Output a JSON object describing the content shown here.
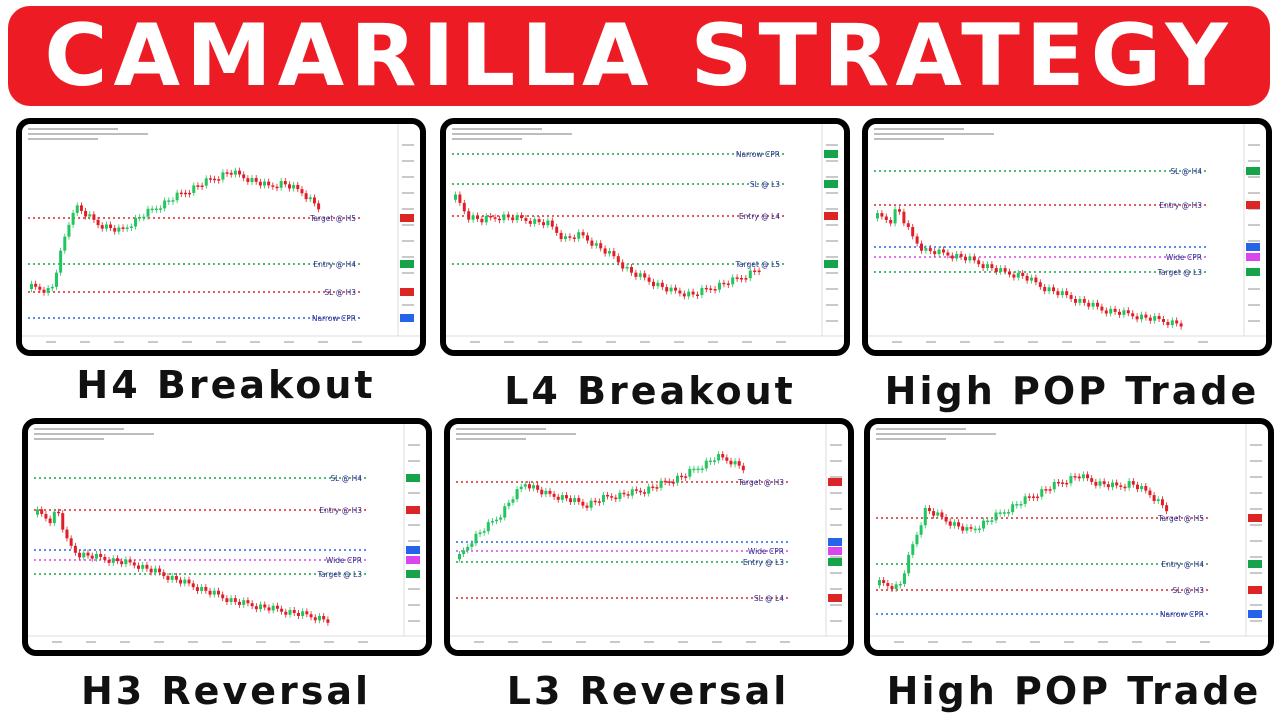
{
  "banner": {
    "title": "CAMARILLA STRATEGY",
    "color": "#ed1c24"
  },
  "colors": {
    "up": "#22c55e",
    "down": "#e11d26",
    "green_level": "#16a34a",
    "red_level": "#dc2626",
    "blue_level": "#2563eb",
    "pink_level": "#d946ef",
    "label": "#2b2b8c"
  },
  "panels": [
    {
      "caption": "H4 Breakout",
      "levels": [
        {
          "label": "Target @ H5"
        },
        {
          "label": "Entry @ H4"
        },
        {
          "label": "SL @ H3"
        },
        {
          "label": "Narrow CPR"
        }
      ]
    },
    {
      "caption": "L4 Breakout",
      "levels": [
        {
          "label": "Narrow CPR"
        },
        {
          "label": "SL @ L3"
        },
        {
          "label": "Entry @ L4"
        },
        {
          "label": "Target @ L5"
        }
      ]
    },
    {
      "caption": "High POP Trade",
      "levels": [
        {
          "label": "SL @ H4"
        },
        {
          "label": "Entry @ H3"
        },
        {
          "label": "Wide CPR"
        },
        {
          "label": "Target @ L3"
        }
      ]
    },
    {
      "caption": "H3 Reversal",
      "levels": [
        {
          "label": "SL @ H4"
        },
        {
          "label": "Entry @ H3"
        },
        {
          "label": "Wide CPR"
        },
        {
          "label": "Target @ L3"
        }
      ]
    },
    {
      "caption": "L3 Reversal",
      "levels": [
        {
          "label": "Target @ H3"
        },
        {
          "label": "Wide CPR"
        },
        {
          "label": "Entry @ L3"
        },
        {
          "label": "SL @ L4"
        }
      ]
    },
    {
      "caption": "High POP Trade",
      "levels": [
        {
          "label": "Target @ H5"
        },
        {
          "label": "Entry @ H4"
        },
        {
          "label": "SL @ H3"
        },
        {
          "label": "Narrow CPR"
        }
      ]
    }
  ]
}
